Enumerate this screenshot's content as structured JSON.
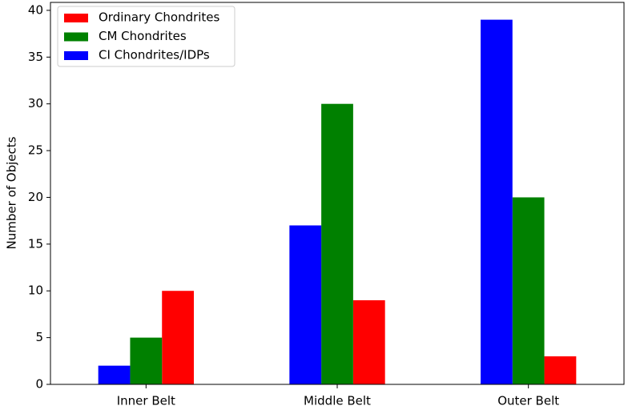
{
  "chart_data": {
    "type": "bar",
    "ylabel": "Number of Objects",
    "categories": [
      "Inner Belt",
      "Middle Belt",
      "Outer Belt"
    ],
    "series": [
      {
        "name": "Ordinary Chondrites",
        "color": "#ff0000",
        "values": [
          10,
          9,
          3
        ]
      },
      {
        "name": "CM Chondrites",
        "color": "#008000",
        "values": [
          5,
          30,
          20
        ]
      },
      {
        "name": "CI Chondrites/IDPs",
        "color": "#0000ff",
        "values": [
          2,
          17,
          39
        ]
      }
    ],
    "ylim": [
      0,
      40.85
    ],
    "yticks": [
      0,
      5,
      10,
      15,
      20,
      25,
      30,
      35,
      40
    ],
    "grid": false,
    "legend": "upper left"
  }
}
